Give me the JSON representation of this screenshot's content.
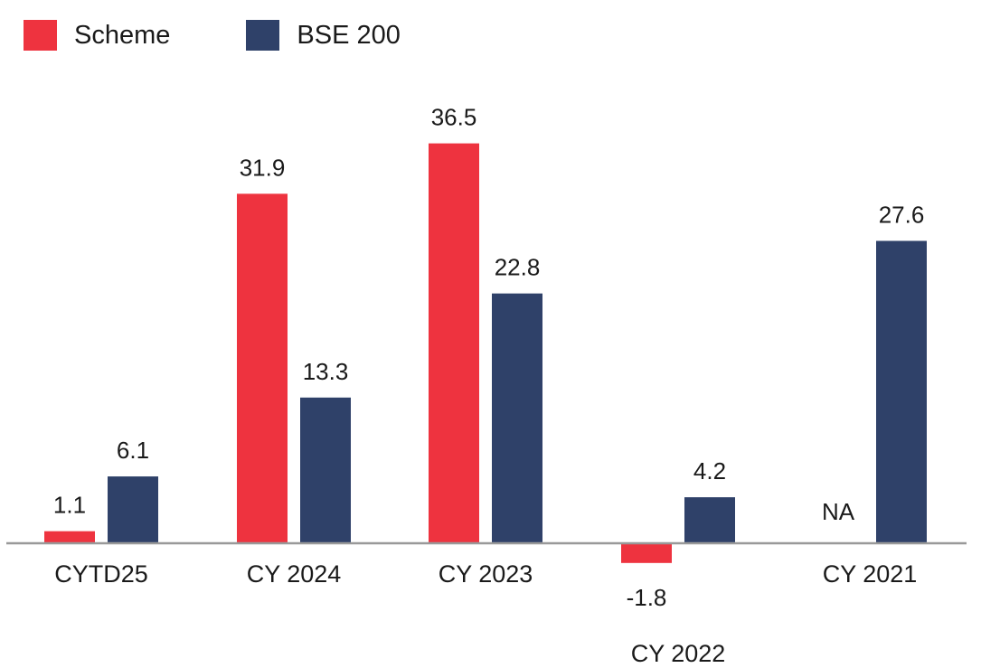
{
  "legend": {
    "scheme": "Scheme",
    "benchmark": "BSE 200"
  },
  "colors": {
    "scheme": "#EE333F",
    "benchmark": "#2F4169",
    "axis": "#999999",
    "text": "#1a1a1a"
  },
  "chart_data": {
    "type": "bar",
    "categories": [
      "CYTD25",
      "CY 2024",
      "CY 2023",
      "CY 2022",
      "CY 2021"
    ],
    "series": [
      {
        "name": "Scheme",
        "values": [
          1.1,
          31.9,
          36.5,
          -1.8,
          null
        ],
        "labels": [
          "1.1",
          "31.9",
          "36.5",
          "-1.8",
          "NA"
        ]
      },
      {
        "name": "BSE 200",
        "values": [
          6.1,
          13.3,
          22.8,
          4.2,
          27.6
        ],
        "labels": [
          "6.1",
          "13.3",
          "22.8",
          "4.2",
          "27.6"
        ]
      }
    ],
    "title": "",
    "xlabel": "",
    "ylabel": "",
    "ylim": [
      -1.8,
      36.5
    ],
    "grid": false,
    "legend_position": "top-left",
    "data_labels": true
  }
}
